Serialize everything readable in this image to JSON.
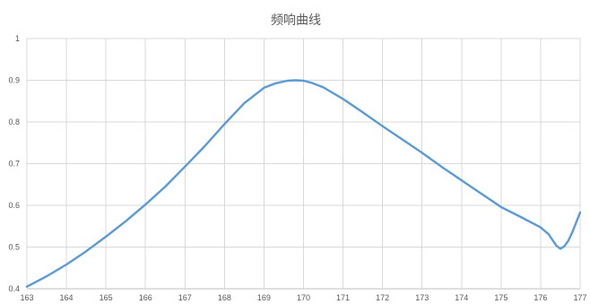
{
  "chart_data": {
    "type": "line",
    "title": "频响曲线",
    "xlabel": "",
    "ylabel": "",
    "xlim": [
      163,
      177
    ],
    "ylim": [
      0.4,
      1
    ],
    "x_ticks": [
      "163",
      "164",
      "165",
      "166",
      "167",
      "168",
      "169",
      "170",
      "171",
      "172",
      "173",
      "174",
      "175",
      "176",
      "177"
    ],
    "y_ticks": [
      "0.4",
      "0.5",
      "0.6",
      "0.7",
      "0.8",
      "0.9",
      "1"
    ],
    "grid": true,
    "legend": "none",
    "series_color": "#5b9bd5",
    "series": [
      {
        "x": [
          163.0,
          163.5,
          164.0,
          164.5,
          165.0,
          165.5,
          166.0,
          166.5,
          167.0,
          167.5,
          168.0,
          168.5,
          169.0,
          169.3,
          169.6,
          169.8,
          170.0,
          170.2,
          170.5,
          171.0,
          171.5,
          172.0,
          172.5,
          173.0,
          173.5,
          174.0,
          174.5,
          175.0,
          175.5,
          176.0,
          176.2,
          176.4,
          176.5,
          176.6,
          176.7,
          176.8,
          177.0
        ],
        "y": [
          0.405,
          0.43,
          0.458,
          0.49,
          0.525,
          0.562,
          0.602,
          0.645,
          0.693,
          0.742,
          0.795,
          0.845,
          0.882,
          0.893,
          0.899,
          0.9,
          0.899,
          0.894,
          0.883,
          0.855,
          0.823,
          0.79,
          0.758,
          0.726,
          0.692,
          0.66,
          0.628,
          0.596,
          0.572,
          0.547,
          0.531,
          0.503,
          0.496,
          0.502,
          0.515,
          0.535,
          0.583
        ]
      }
    ]
  }
}
